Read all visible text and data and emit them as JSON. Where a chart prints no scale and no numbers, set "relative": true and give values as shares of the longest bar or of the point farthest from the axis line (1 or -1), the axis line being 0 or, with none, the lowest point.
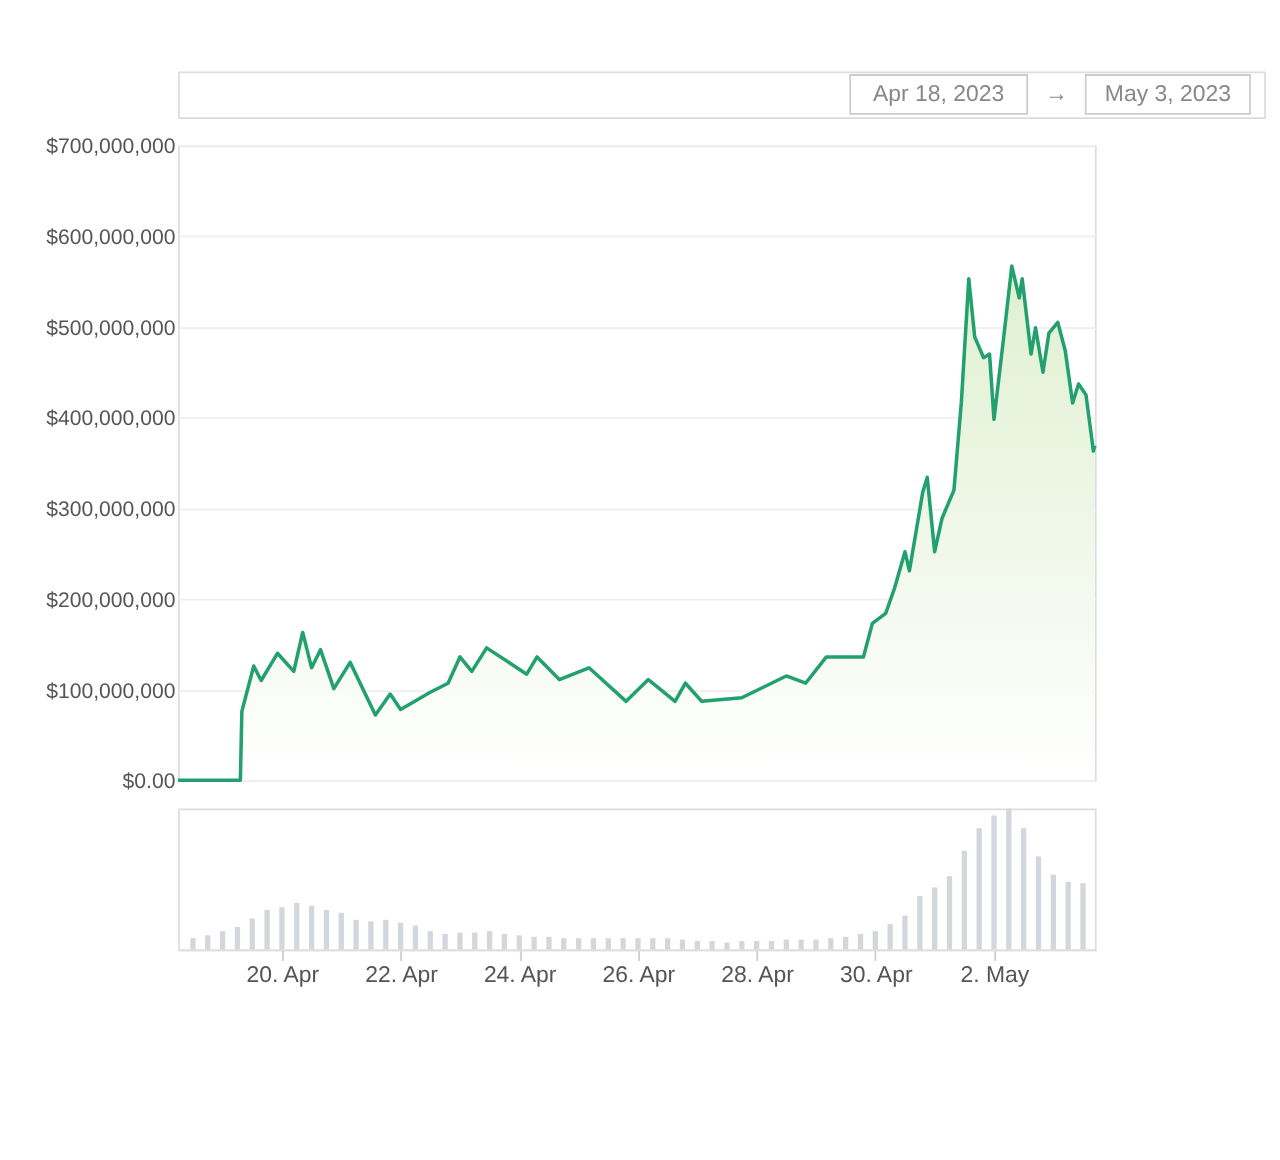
{
  "chart_data": [
    {
      "type": "area",
      "annotations": [
        "Apr 18, 2023",
        "→",
        "May 3, 2023"
      ],
      "grid": "y",
      "tick_labels": "y",
      "xlim": [
        "2023-04-18T06:00",
        "2023-05-03T16:48"
      ],
      "ylim": [
        0,
        700000000
      ],
      "yticks": [
        {
          "value": 0,
          "label": "$0.00"
        },
        {
          "value": 100000000,
          "label": "$100,000,000"
        },
        {
          "value": 200000000,
          "label": "$200,000,000"
        },
        {
          "value": 300000000,
          "label": "$300,000,000"
        },
        {
          "value": 400000000,
          "label": "$400,000,000"
        },
        {
          "value": 500000000,
          "label": "$500,000,000"
        },
        {
          "value": 600000000,
          "label": "$600,000,000"
        },
        {
          "value": 700000000,
          "label": "$700,000,000"
        }
      ],
      "x": [
        "2023-04-18T06:00",
        "2023-04-19T07:12",
        "2023-04-19T07:48",
        "2023-04-19T12:36",
        "2023-04-19T15:36",
        "2023-04-19T22:12",
        "2023-04-20T04:48",
        "2023-04-20T08:24",
        "2023-04-20T12:00",
        "2023-04-20T15:36",
        "2023-04-20T21:00",
        "2023-04-21T03:36",
        "2023-04-21T13:48",
        "2023-04-21T19:48",
        "2023-04-22T00:00",
        "2023-04-22T12:00",
        "2023-04-22T19:12",
        "2023-04-23T00:00",
        "2023-04-23T04:48",
        "2023-04-23T10:48",
        "2023-04-24T03:00",
        "2023-04-24T07:12",
        "2023-04-24T16:12",
        "2023-04-25T04:12",
        "2023-04-25T19:12",
        "2023-04-26T04:12",
        "2023-04-26T15:00",
        "2023-04-26T19:12",
        "2023-04-27T01:48",
        "2023-04-27T18:00",
        "2023-04-28T12:00",
        "2023-04-28T19:48",
        "2023-04-29T04:12",
        "2023-04-29T19:12",
        "2023-04-29T22:48",
        "2023-04-30T04:12",
        "2023-04-30T07:48",
        "2023-04-30T12:00",
        "2023-04-30T13:48",
        "2023-04-30T19:12",
        "2023-04-30T21:00",
        "2023-05-01T00:00",
        "2023-05-01T03:00",
        "2023-05-01T07:48",
        "2023-05-01T10:48",
        "2023-05-01T13:48",
        "2023-05-01T16:12",
        "2023-05-01T19:48",
        "2023-05-01T22:12",
        "2023-05-02T00:00",
        "2023-05-02T04:12",
        "2023-05-02T07:12",
        "2023-05-02T10:12",
        "2023-05-02T11:24",
        "2023-05-02T15:00",
        "2023-05-02T16:48",
        "2023-05-02T19:48",
        "2023-05-02T22:12",
        "2023-05-03T01:48",
        "2023-05-03T04:48",
        "2023-05-03T07:48",
        "2023-05-03T10:12",
        "2023-05-03T13:12",
        "2023-05-03T16:12",
        "2023-05-03T16:48"
      ],
      "series": [
        {
          "color": "#22a06f",
          "values": [
            0,
            0,
            76000000,
            126000000,
            110000000,
            140000000,
            120000000,
            163000000,
            124000000,
            144000000,
            101000000,
            130000000,
            72000000,
            95000000,
            78000000,
            97000000,
            107000000,
            136000000,
            120000000,
            146000000,
            117000000,
            136000000,
            111000000,
            124000000,
            87000000,
            111000000,
            87000000,
            107000000,
            87000000,
            91000000,
            115000000,
            107000000,
            136000000,
            136000000,
            173000000,
            184000000,
            212000000,
            252000000,
            231000000,
            318000000,
            334000000,
            252000000,
            289000000,
            320000000,
            417000000,
            553000000,
            489000000,
            466000000,
            470000000,
            398000000,
            495000000,
            567000000,
            532000000,
            553000000,
            470000000,
            499000000,
            450000000,
            493000000,
            505000000,
            474000000,
            416000000,
            437000000,
            425000000,
            363000000,
            369000000
          ]
        }
      ]
    },
    {
      "type": "bar",
      "relative": true,
      "tick_labels": "x",
      "xlim": [
        "2023-04-18T06:00",
        "2023-05-03T16:48"
      ],
      "xticks": [
        {
          "value": "2023-04-20",
          "label": "20. Apr"
        },
        {
          "value": "2023-04-22",
          "label": "22. Apr"
        },
        {
          "value": "2023-04-24",
          "label": "24. Apr"
        },
        {
          "value": "2023-04-26",
          "label": "26. Apr"
        },
        {
          "value": "2023-04-28",
          "label": "28. Apr"
        },
        {
          "value": "2023-04-30",
          "label": "30. Apr"
        },
        {
          "value": "2023-05-02",
          "label": "2. May"
        }
      ],
      "x": [
        "2023-04-18T12:00",
        "2023-04-18T18:00",
        "2023-04-19T00:00",
        "2023-04-19T06:00",
        "2023-04-19T12:00",
        "2023-04-19T18:00",
        "2023-04-20T00:00",
        "2023-04-20T06:00",
        "2023-04-20T12:00",
        "2023-04-20T18:00",
        "2023-04-21T00:00",
        "2023-04-21T06:00",
        "2023-04-21T12:00",
        "2023-04-21T18:00",
        "2023-04-22T00:00",
        "2023-04-22T06:00",
        "2023-04-22T12:00",
        "2023-04-22T18:00",
        "2023-04-23T00:00",
        "2023-04-23T06:00",
        "2023-04-23T12:00",
        "2023-04-23T18:00",
        "2023-04-24T00:00",
        "2023-04-24T06:00",
        "2023-04-24T12:00",
        "2023-04-24T18:00",
        "2023-04-25T00:00",
        "2023-04-25T06:00",
        "2023-04-25T12:00",
        "2023-04-25T18:00",
        "2023-04-26T00:00",
        "2023-04-26T06:00",
        "2023-04-26T12:00",
        "2023-04-26T18:00",
        "2023-04-27T00:00",
        "2023-04-27T06:00",
        "2023-04-27T12:00",
        "2023-04-27T18:00",
        "2023-04-28T00:00",
        "2023-04-28T06:00",
        "2023-04-28T12:00",
        "2023-04-28T18:00",
        "2023-04-29T00:00",
        "2023-04-29T06:00",
        "2023-04-29T12:00",
        "2023-04-29T18:00",
        "2023-04-30T00:00",
        "2023-04-30T06:00",
        "2023-04-30T12:00",
        "2023-04-30T18:00",
        "2023-05-01T00:00",
        "2023-05-01T06:00",
        "2023-05-01T12:00",
        "2023-05-01T18:00",
        "2023-05-02T00:00",
        "2023-05-02T06:00",
        "2023-05-02T12:00",
        "2023-05-02T18:00",
        "2023-05-03T00:00",
        "2023-05-03T06:00",
        "2023-05-03T12:00"
      ],
      "series": [
        {
          "color": "#d3d6dc",
          "values": [
            0.08,
            0.1,
            0.13,
            0.16,
            0.22,
            0.28,
            0.3,
            0.33,
            0.31,
            0.28,
            0.26,
            0.21,
            0.2,
            0.21,
            0.19,
            0.17,
            0.13,
            0.11,
            0.12,
            0.12,
            0.13,
            0.11,
            0.1,
            0.09,
            0.09,
            0.08,
            0.08,
            0.08,
            0.08,
            0.08,
            0.08,
            0.08,
            0.08,
            0.07,
            0.06,
            0.06,
            0.05,
            0.06,
            0.06,
            0.06,
            0.07,
            0.07,
            0.07,
            0.08,
            0.09,
            0.11,
            0.13,
            0.18,
            0.24,
            0.38,
            0.44,
            0.52,
            0.7,
            0.86,
            0.95,
            1.0,
            0.86,
            0.66,
            0.53,
            0.48,
            0.47
          ]
        }
      ]
    }
  ]
}
